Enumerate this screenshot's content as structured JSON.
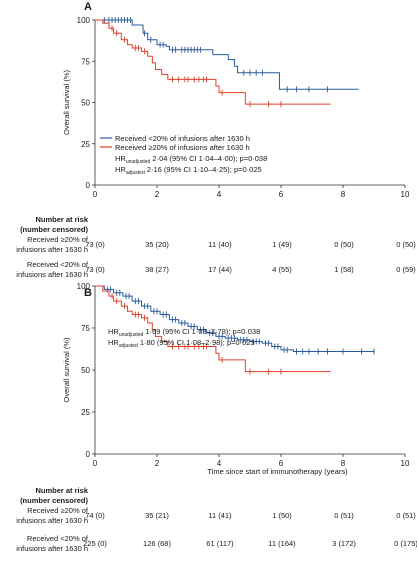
{
  "chart_data": [
    {
      "type": "line",
      "panel_label": "A",
      "xlabel": "",
      "ylabel": "Overall survival (%)",
      "xlim": [
        0,
        10
      ],
      "ylim": [
        0,
        100
      ],
      "x_ticks": [
        "0",
        "2",
        "4",
        "6",
        "8",
        "10"
      ],
      "y_ticks": [
        "0",
        "25",
        "50",
        "75",
        "100"
      ],
      "legend_position": "lower-left",
      "series": [
        {
          "name": "Received <20% of infusions after 1630 h",
          "color": "#2a5a9c",
          "steps": [
            [
              0,
              100
            ],
            [
              1.2,
              97
            ],
            [
              1.55,
              92
            ],
            [
              1.7,
              88
            ],
            [
              2.0,
              85
            ],
            [
              2.3,
              84
            ],
            [
              2.4,
              82
            ],
            [
              3.6,
              82
            ],
            [
              3.8,
              79
            ],
            [
              4.3,
              76
            ],
            [
              4.5,
              72
            ],
            [
              4.6,
              68
            ],
            [
              5.5,
              68
            ],
            [
              5.9,
              68
            ],
            [
              5.95,
              58
            ],
            [
              8.5,
              58
            ]
          ],
          "censor_x": [
            0.3,
            0.45,
            0.55,
            0.65,
            0.75,
            0.85,
            0.95,
            1.05,
            1.15,
            1.6,
            1.8,
            2.1,
            2.2,
            2.5,
            2.6,
            2.8,
            2.9,
            3.0,
            3.1,
            3.2,
            3.3,
            3.4,
            4.8,
            5.0,
            5.2,
            5.4,
            6.2,
            6.5,
            6.9,
            7.5
          ]
        },
        {
          "name": "Received ≥20% of infusions after 1630 h",
          "color": "#e0402a",
          "steps": [
            [
              0,
              100
            ],
            [
              0.25,
              98
            ],
            [
              0.45,
              95
            ],
            [
              0.6,
              92
            ],
            [
              0.85,
              88
            ],
            [
              1.05,
              85
            ],
            [
              1.2,
              83
            ],
            [
              1.5,
              81
            ],
            [
              1.7,
              78
            ],
            [
              1.85,
              74
            ],
            [
              1.95,
              70
            ],
            [
              2.15,
              67
            ],
            [
              2.35,
              64
            ],
            [
              3.7,
              64
            ],
            [
              3.9,
              60
            ],
            [
              4.0,
              56
            ],
            [
              4.3,
              56
            ],
            [
              4.8,
              56
            ],
            [
              4.85,
              49
            ],
            [
              7.6,
              49
            ]
          ],
          "censor_x": [
            0.55,
            0.7,
            0.95,
            1.3,
            1.4,
            1.6,
            2.5,
            2.7,
            2.9,
            3.0,
            3.2,
            3.35,
            3.5,
            3.6,
            4.1,
            5.0,
            5.6,
            6.0
          ]
        }
      ],
      "hr_unadjusted": {
        "text_prefix": "HR",
        "subscript": "unadjusted",
        "text": "2·04 (95% CI 1·04–4·00); p=0·038"
      },
      "hr_adjusted": {
        "text_prefix": "HR",
        "subscript": "adjusted",
        "text": "2·16 (95% CI 1·10–4·25); p=0·025"
      },
      "risk_table": {
        "title_line1": "Number at risk",
        "title_line2": "(number censored)",
        "rows": [
          {
            "label_line1": "Received ≥20% of",
            "label_line2": "infusions after 1630 h",
            "values": [
              "73 (0)",
              "35 (20)",
              "11 (40)",
              "1 (49)",
              "0 (50)",
              "0 (50)"
            ]
          },
          {
            "label_line1": "Received <20% of",
            "label_line2": "infusions after 1630 h",
            "values": [
              "73 (0)",
              "38 (27)",
              "17 (44)",
              "4 (55)",
              "1 (58)",
              "0 (59)"
            ]
          }
        ]
      }
    },
    {
      "type": "line",
      "panel_label": "B",
      "xlabel": "Time since start of immunotherapy (years)",
      "ylabel": "Overall survival (%)",
      "xlim": [
        0,
        10
      ],
      "ylim": [
        0,
        100
      ],
      "x_ticks": [
        "0",
        "2",
        "4",
        "6",
        "8",
        "10"
      ],
      "y_ticks": [
        "0",
        "25",
        "50",
        "75",
        "100"
      ],
      "series": [
        {
          "name": "Received <20% of infusions after 1630 h",
          "color": "#2a5a9c",
          "steps": [
            [
              0,
              100
            ],
            [
              0.3,
              98
            ],
            [
              0.6,
              96
            ],
            [
              0.9,
              94
            ],
            [
              1.2,
              91
            ],
            [
              1.5,
              88
            ],
            [
              1.8,
              85
            ],
            [
              2.1,
              83
            ],
            [
              2.4,
              80
            ],
            [
              2.7,
              78
            ],
            [
              3.0,
              76
            ],
            [
              3.3,
              74
            ],
            [
              3.6,
              72
            ],
            [
              3.9,
              70
            ],
            [
              4.2,
              69
            ],
            [
              4.6,
              68
            ],
            [
              5.0,
              67
            ],
            [
              5.4,
              66
            ],
            [
              5.7,
              64
            ],
            [
              6.0,
              62
            ],
            [
              6.4,
              61
            ],
            [
              9.0,
              61
            ]
          ],
          "censor_x": [
            0.4,
            0.5,
            0.7,
            0.8,
            1.0,
            1.1,
            1.3,
            1.4,
            1.6,
            1.7,
            1.9,
            2.0,
            2.2,
            2.3,
            2.5,
            2.6,
            2.8,
            2.9,
            3.1,
            3.2,
            3.4,
            3.5,
            3.7,
            3.8,
            4.0,
            4.1,
            4.3,
            4.4,
            4.5,
            4.7,
            4.8,
            4.9,
            5.1,
            5.2,
            5.3,
            5.5,
            5.6,
            5.8,
            5.9,
            6.1,
            6.2,
            6.5,
            6.7,
            6.9,
            7.2,
            7.5,
            8.0,
            8.6,
            9.0
          ]
        },
        {
          "name": "Received ≥20% of infusions after 1630 h",
          "color": "#e0402a",
          "steps": [
            [
              0,
              100
            ],
            [
              0.25,
              97
            ],
            [
              0.45,
              94
            ],
            [
              0.6,
              91
            ],
            [
              0.85,
              88
            ],
            [
              1.05,
              85
            ],
            [
              1.2,
              83
            ],
            [
              1.5,
              81
            ],
            [
              1.7,
              78
            ],
            [
              1.85,
              74
            ],
            [
              1.95,
              70
            ],
            [
              2.15,
              67
            ],
            [
              2.35,
              64
            ],
            [
              3.7,
              64
            ],
            [
              3.9,
              60
            ],
            [
              4.0,
              56
            ],
            [
              4.3,
              56
            ],
            [
              4.8,
              56
            ],
            [
              4.85,
              49
            ],
            [
              7.6,
              49
            ]
          ],
          "censor_x": [
            0.55,
            0.7,
            0.95,
            1.3,
            1.4,
            1.6,
            2.5,
            2.7,
            2.9,
            3.0,
            3.2,
            3.35,
            3.5,
            3.6,
            4.1,
            5.0,
            5.6,
            6.0
          ]
        }
      ],
      "hr_unadjusted": {
        "text_prefix": "HR",
        "subscript": "unadjusted",
        "text": "1·69 (95% CI 1·03–2·78); p=0·038"
      },
      "hr_adjusted": {
        "text_prefix": "HR",
        "subscript": "adjusted",
        "text": "1·80 (95% CI 1·08–2·98); p=0·023"
      },
      "risk_table": {
        "title_line1": "Number at risk",
        "title_line2": "(number censored)",
        "rows": [
          {
            "label_line1": "Received ≥20% of",
            "label_line2": "infusions after 1630 h",
            "values": [
              "74 (0)",
              "35 (21)",
              "11 (41)",
              "1 (50)",
              "0 (51)",
              "0 (51)"
            ]
          },
          {
            "label_line1": "Received <20% of",
            "label_line2": "infusions after 1630 h",
            "values": [
              "225 (0)",
              "126 (68)",
              "61 (117)",
              "11 (164)",
              "3 (172)",
              "0 (175)"
            ]
          }
        ]
      }
    }
  ]
}
